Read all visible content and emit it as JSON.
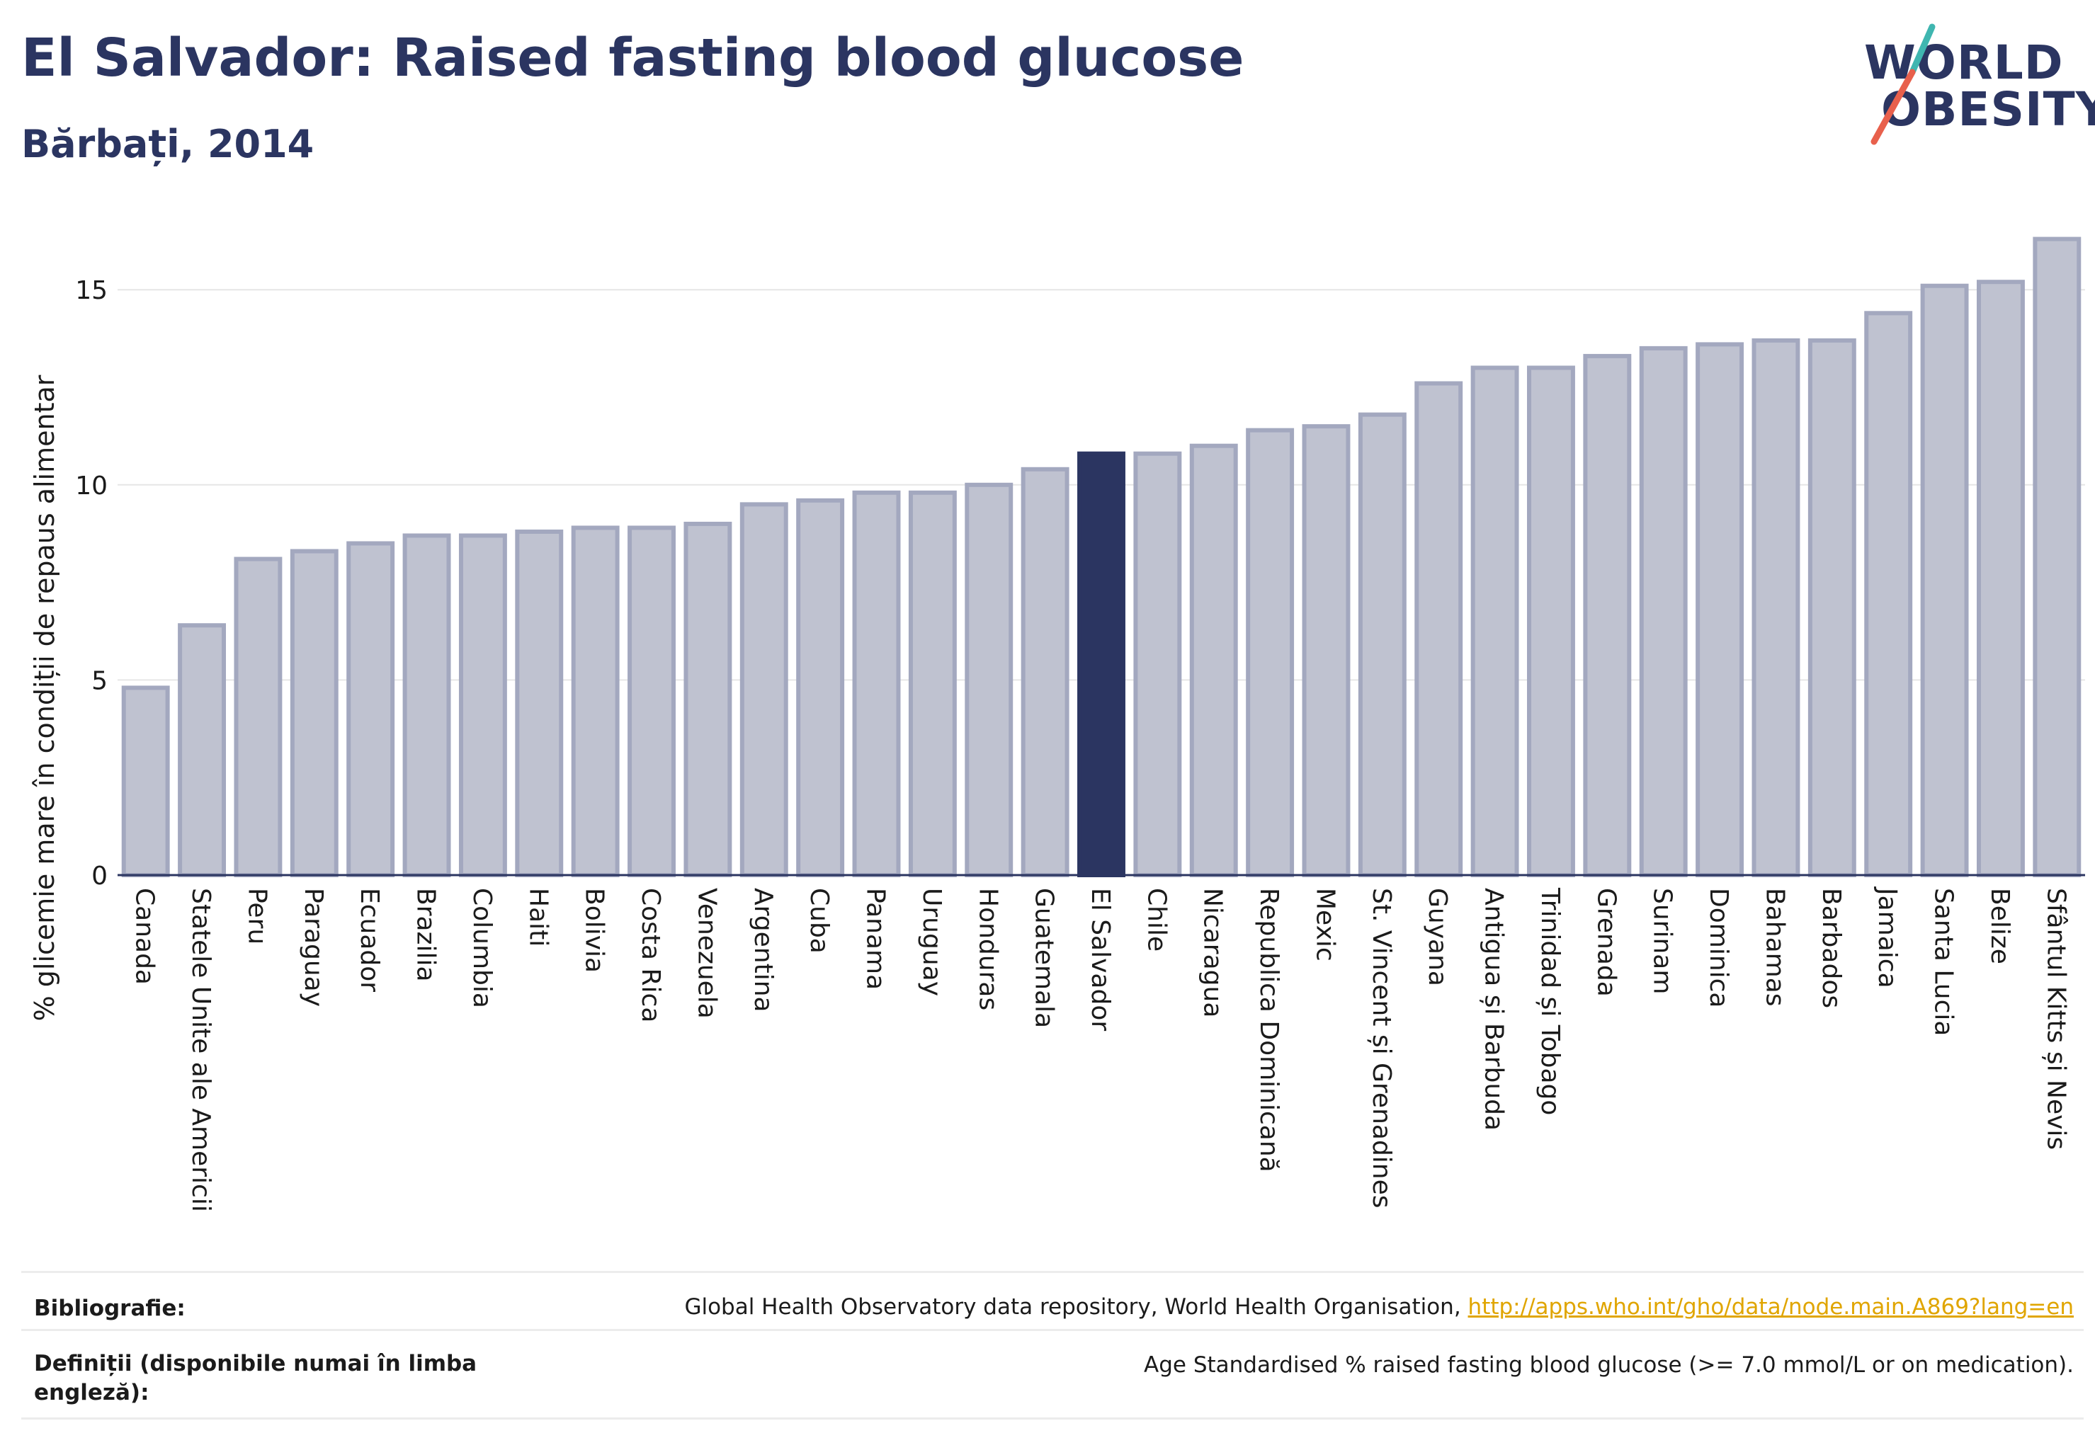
{
  "header": {
    "title": "El Salvador: Raised fasting blood glucose",
    "subtitle": "Bărbați, 2014"
  },
  "logo": {
    "line1": "WORLD",
    "line2": "OBESITY"
  },
  "colors": {
    "title": "#2b3561",
    "bar": "#bfc2d0",
    "bar_border": "#a3a8bf",
    "highlight": "#2b3561",
    "link": "#e0a500",
    "logo_slash_teal": "#3fb6b0",
    "logo_slash_red": "#e8604c"
  },
  "chart_data": {
    "type": "bar",
    "ylabel": "% glicemie mare în condiții de repaus alimentar",
    "xlabel": "",
    "ylim": [
      0,
      16.8
    ],
    "yticks": [
      0,
      5,
      10,
      15
    ],
    "grid": true,
    "highlight": "El Salvador",
    "categories": [
      "Canada",
      "Statele Unite ale Americii",
      "Peru",
      "Paraguay",
      "Ecuador",
      "Brazilia",
      "Columbia",
      "Haiti",
      "Bolivia",
      "Costa Rica",
      "Venezuela",
      "Argentina",
      "Cuba",
      "Panama",
      "Uruguay",
      "Honduras",
      "Guatemala",
      "El Salvador",
      "Chile",
      "Nicaragua",
      "Republica Dominicană",
      "Mexic",
      "St. Vincent și Grenadines",
      "Guyana",
      "Antigua și Barbuda",
      "Trinidad și Tobago",
      "Grenada",
      "Surinam",
      "Dominica",
      "Bahamas",
      "Barbados",
      "Jamaica",
      "Santa Lucia",
      "Belize",
      "Sfântul Kitts și Nevis"
    ],
    "values": [
      4.8,
      6.4,
      8.1,
      8.3,
      8.5,
      8.7,
      8.7,
      8.8,
      8.9,
      8.9,
      9.0,
      9.5,
      9.6,
      9.8,
      9.8,
      10.0,
      10.4,
      10.8,
      10.8,
      11.0,
      11.4,
      11.5,
      11.8,
      12.6,
      13.0,
      13.0,
      13.3,
      13.5,
      13.6,
      13.7,
      13.7,
      14.4,
      15.1,
      15.2,
      16.3
    ]
  },
  "footer": {
    "bibliography_label": "Bibliografie:",
    "bibliography_text": "Global Health Observatory data repository, World Health Organisation, ",
    "bibliography_link": "http://apps.who.int/gho/data/node.main.A869?lang=en",
    "definitions_label": "Definiții (disponibile numai în limba engleză):",
    "definitions_text": "Age Standardised % raised fasting blood glucose (>= 7.0 mmol/L or on medication)."
  }
}
